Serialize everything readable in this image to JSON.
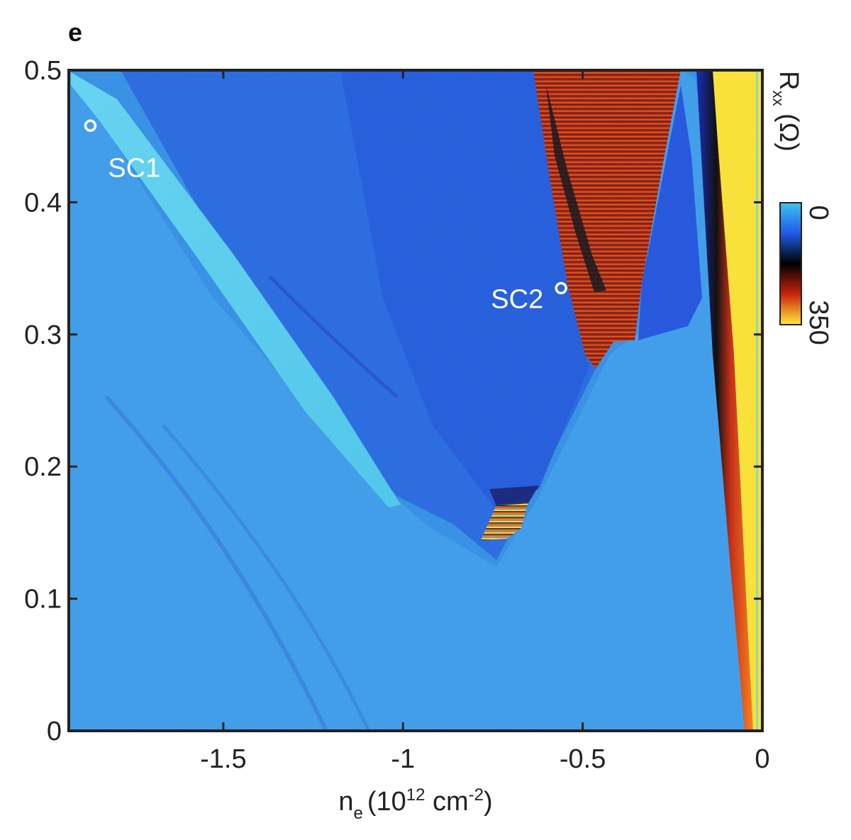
{
  "panel_label": "e",
  "chart_data": {
    "type": "heatmap",
    "title": "",
    "x": {
      "label_main": "n",
      "label_sub": "e",
      "label_paren_open": "(10",
      "label_exp1": "12",
      "label_unit": " cm",
      "label_exp2": "-2",
      "label_paren_close": ")",
      "range": [
        -1.93,
        0
      ],
      "ticks": [
        -1.5,
        -1,
        -0.5,
        0
      ],
      "tick_labels": [
        "-1.5",
        "-1",
        "-0.5",
        "0"
      ]
    },
    "y": {
      "label": "",
      "range": [
        0,
        0.5
      ],
      "ticks": [
        0,
        0.1,
        0.2,
        0.3,
        0.4,
        0.5
      ],
      "tick_labels": [
        "0",
        "0.1",
        "0.2",
        "0.3",
        "0.4",
        "0.5"
      ]
    },
    "colorbar": {
      "label_main": "R",
      "label_sub": "xx",
      "label_unit": " (Ω)",
      "min": 0,
      "max": 350,
      "min_label": "0",
      "max_label": "350",
      "colors": [
        "#39b8ea",
        "#1a4fe6",
        "#000000",
        "#c8200a",
        "#ffe53a"
      ]
    },
    "annotations": [
      {
        "name": "sc1",
        "label": "SC1",
        "x": -1.87,
        "y": 0.458
      },
      {
        "name": "sc2",
        "label": "SC2",
        "x": -0.56,
        "y": 0.335
      }
    ]
  }
}
